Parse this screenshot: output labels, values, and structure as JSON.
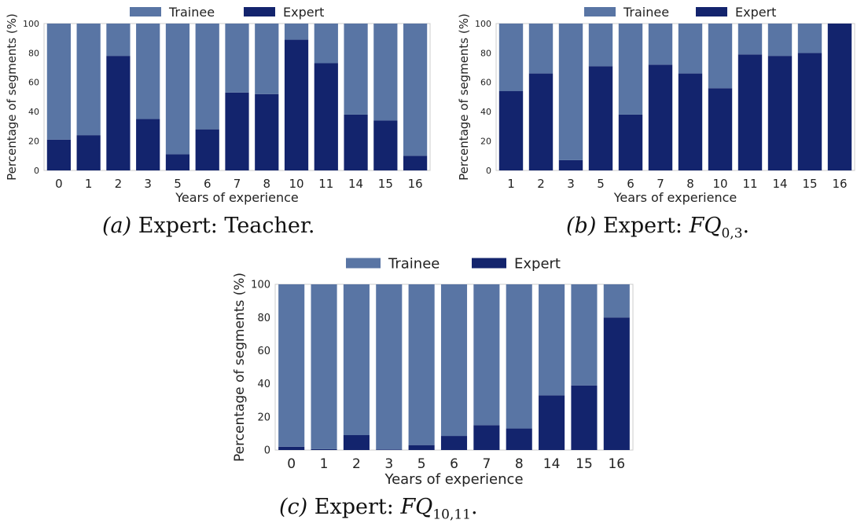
{
  "colors": {
    "trainee": "#5975a4",
    "expert": "#13246d",
    "frame": "#cccccc"
  },
  "captions": [
    {
      "prefix": "(a)",
      "text": "Expert: Teacher.",
      "math": "",
      "sub": "",
      "suffix": ""
    },
    {
      "prefix": "(b)",
      "text": "Expert: ",
      "math": "FQ",
      "sub": "0,3",
      "suffix": "."
    },
    {
      "prefix": "(c)",
      "text": "Expert: ",
      "math": "FQ",
      "sub": "10,11",
      "suffix": "."
    }
  ],
  "chart_data": [
    {
      "type": "bar",
      "stacked": true,
      "xlabel": "Years of experience",
      "ylabel": "Percentage of segments (%)",
      "ylim": [
        0,
        100
      ],
      "yticks": [
        0,
        20,
        40,
        60,
        80,
        100
      ],
      "legend": "top-center",
      "grid": false,
      "categories": [
        "0",
        "1",
        "2",
        "3",
        "5",
        "6",
        "7",
        "8",
        "10",
        "11",
        "14",
        "15",
        "16"
      ],
      "series": [
        {
          "name": "Trainee",
          "values": [
            79,
            76,
            22,
            65,
            89,
            72,
            47,
            48,
            11,
            27,
            62,
            66,
            90
          ]
        },
        {
          "name": "Expert",
          "values": [
            21,
            24,
            78,
            35,
            11,
            28,
            53,
            52,
            89,
            73,
            38,
            34,
            10
          ]
        }
      ]
    },
    {
      "type": "bar",
      "stacked": true,
      "xlabel": "Years of experience",
      "ylabel": "Percentage of segments (%)",
      "ylim": [
        0,
        100
      ],
      "yticks": [
        0,
        20,
        40,
        60,
        80,
        100
      ],
      "legend": "top-center",
      "grid": false,
      "categories": [
        "1",
        "2",
        "3",
        "5",
        "6",
        "7",
        "8",
        "10",
        "11",
        "14",
        "15",
        "16"
      ],
      "series": [
        {
          "name": "Trainee",
          "values": [
            46,
            34,
            93,
            29,
            62,
            28,
            34,
            44,
            21,
            22,
            20,
            0
          ]
        },
        {
          "name": "Expert",
          "values": [
            54,
            66,
            7,
            71,
            38,
            72,
            66,
            56,
            79,
            78,
            80,
            100
          ]
        }
      ]
    },
    {
      "type": "bar",
      "stacked": true,
      "xlabel": "Years of experience",
      "ylabel": "Percentage of segments (%)",
      "ylim": [
        0,
        100
      ],
      "yticks": [
        0,
        20,
        40,
        60,
        80,
        100
      ],
      "legend": "top-center",
      "grid": false,
      "categories": [
        "0",
        "1",
        "2",
        "3",
        "5",
        "6",
        "7",
        "8",
        "14",
        "15",
        "16"
      ],
      "series": [
        {
          "name": "Trainee",
          "values": [
            98,
            99.5,
            91,
            99.7,
            97,
            91.5,
            85,
            87,
            67,
            61,
            20
          ]
        },
        {
          "name": "Expert",
          "values": [
            2,
            0.5,
            9,
            0.3,
            3,
            8.5,
            15,
            13,
            33,
            39,
            80
          ]
        }
      ]
    }
  ]
}
